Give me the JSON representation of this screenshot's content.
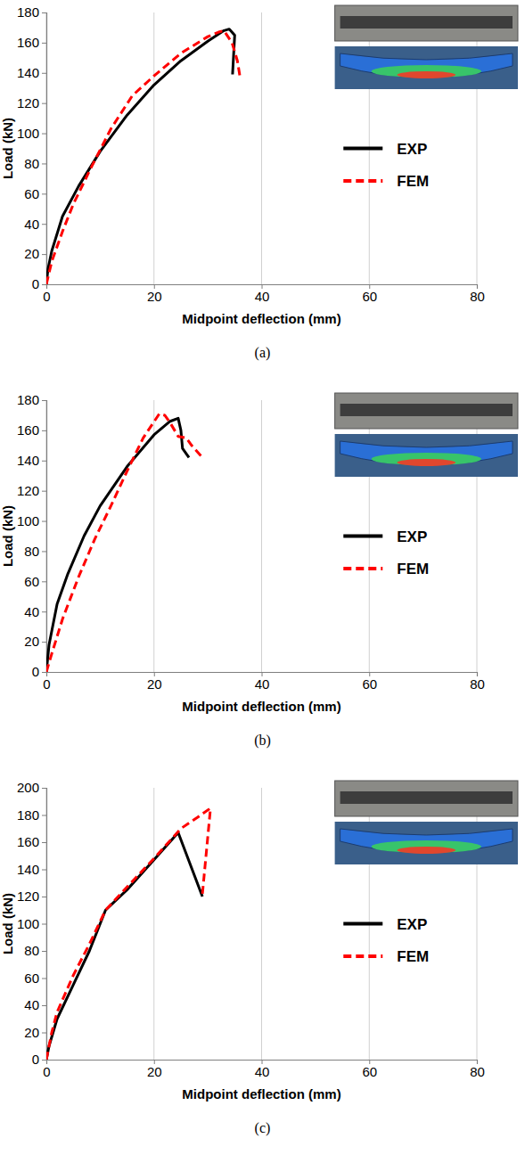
{
  "chart_data": [
    {
      "type": "line",
      "caption": "(a)",
      "xlabel": "Midpoint deflection (mm)",
      "ylabel": "Load (kN)",
      "xlim": [
        0,
        80
      ],
      "xticks": [
        0,
        20,
        40,
        60,
        80
      ],
      "ylim": [
        0,
        180
      ],
      "yticks": [
        0,
        20,
        40,
        60,
        80,
        100,
        120,
        140,
        160,
        180
      ],
      "grid": "x",
      "legend": "right",
      "series": [
        {
          "name": "EXP",
          "color": "#000000",
          "line_style": "solid",
          "x": [
            0,
            0.3,
            1,
            3,
            6,
            10,
            15,
            20,
            25,
            30,
            33,
            34,
            35,
            34.6
          ],
          "values": [
            0,
            10,
            22,
            45,
            65,
            88,
            112,
            132,
            148,
            161,
            168,
            169,
            165,
            139
          ]
        },
        {
          "name": "FEM",
          "color": "#ff0000",
          "line_style": "dashed",
          "x": [
            0,
            1,
            3,
            5,
            8,
            12,
            16,
            20,
            25,
            30,
            32,
            33,
            34.5,
            35.5,
            36
          ],
          "values": [
            0,
            15,
            35,
            53,
            75,
            103,
            125,
            138,
            153,
            164,
            167,
            168,
            160,
            148,
            137
          ]
        }
      ]
    },
    {
      "type": "line",
      "caption": "(b)",
      "xlabel": "Midpoint deflection (mm)",
      "ylabel": "Load (kN)",
      "xlim": [
        0,
        80
      ],
      "xticks": [
        0,
        20,
        40,
        60,
        80
      ],
      "ylim": [
        0,
        180
      ],
      "yticks": [
        0,
        20,
        40,
        60,
        80,
        100,
        120,
        140,
        160,
        180
      ],
      "grid": "x",
      "legend": "right",
      "series": [
        {
          "name": "EXP",
          "color": "#000000",
          "line_style": "solid",
          "x": [
            0,
            0.5,
            2,
            4,
            7,
            10,
            15,
            20,
            23,
            24.5,
            25,
            25.3,
            26.5
          ],
          "values": [
            0,
            18,
            45,
            65,
            90,
            110,
            136,
            157,
            166,
            168,
            160,
            148,
            142
          ]
        },
        {
          "name": "FEM",
          "color": "#ff0000",
          "line_style": "dashed",
          "x": [
            0,
            1,
            3,
            6,
            9,
            12,
            15,
            18,
            21,
            22,
            23,
            24.5,
            26,
            27,
            29
          ],
          "values": [
            0,
            12,
            35,
            63,
            88,
            110,
            133,
            155,
            171,
            170,
            165,
            156,
            155,
            150,
            142
          ]
        }
      ]
    },
    {
      "type": "line",
      "caption": "(c)",
      "xlabel": "Midpoint deflection (mm)",
      "ylabel": "Load (kN)",
      "xlim": [
        0,
        80
      ],
      "xticks": [
        0,
        20,
        40,
        60,
        80
      ],
      "ylim": [
        0,
        200
      ],
      "yticks": [
        0,
        20,
        40,
        60,
        80,
        100,
        120,
        140,
        160,
        180,
        200
      ],
      "grid": "x",
      "legend": "right",
      "series": [
        {
          "name": "EXP",
          "color": "#000000",
          "line_style": "solid",
          "x": [
            0,
            0.5,
            2,
            5,
            8,
            11,
            15,
            20,
            24.5,
            29
          ],
          "values": [
            0,
            10,
            30,
            55,
            80,
            110,
            125,
            147,
            167,
            120
          ]
        },
        {
          "name": "FEM",
          "color": "#ff0000",
          "line_style": "dashed",
          "x": [
            0,
            1,
            2,
            5,
            8,
            11,
            15,
            20,
            25,
            28,
            30.5,
            29
          ],
          "values": [
            0,
            20,
            35,
            62,
            85,
            110,
            127,
            148,
            170,
            178,
            185,
            122
          ]
        }
      ]
    }
  ]
}
